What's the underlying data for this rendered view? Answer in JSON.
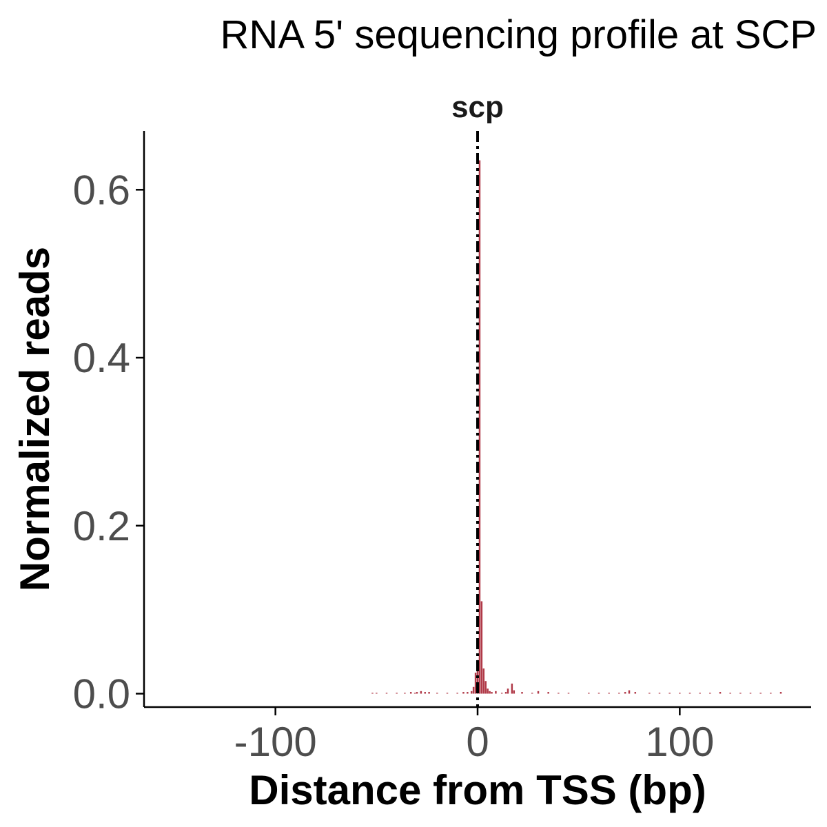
{
  "chart_data": {
    "type": "bar",
    "title": "RNA 5' sequencing profile at SCP",
    "xlabel": "Distance from TSS (bp)",
    "ylabel": "Normalized reads",
    "xlim": [
      -165,
      165
    ],
    "ylim": [
      -0.016,
      0.67
    ],
    "xticks": [
      -100,
      0,
      100
    ],
    "xtick_labels": [
      "-100",
      "0",
      "100"
    ],
    "yticks": [
      0.0,
      0.2,
      0.4,
      0.6
    ],
    "ytick_labels": [
      "0.0",
      "0.2",
      "0.4",
      "0.6"
    ],
    "grid": false,
    "legend": "none",
    "bar_color": "#b03a48",
    "vline": {
      "x": 0,
      "label": "scp",
      "style": "dashed",
      "color": "#000000"
    },
    "series": [
      {
        "x": [
          -52,
          -50,
          -45,
          -40,
          -36,
          -33,
          -31,
          -30,
          -28,
          -26,
          -24,
          -20,
          -15,
          -10,
          -7,
          -5,
          -3,
          -2,
          -1,
          0,
          1,
          2,
          3,
          4,
          5,
          6,
          7,
          9,
          12,
          14,
          15,
          17,
          18,
          22,
          27,
          30,
          35,
          40,
          45,
          55,
          60,
          65,
          70,
          73,
          75,
          78,
          85,
          90,
          95,
          100,
          105,
          110,
          115,
          120,
          125,
          130,
          135,
          140,
          145,
          150
        ],
        "values": [
          0.001,
          0.001,
          0.001,
          0.001,
          0.001,
          0.002,
          0.001,
          0.002,
          0.003,
          0.002,
          0.002,
          0.001,
          0.001,
          0.001,
          0.002,
          0.002,
          0.003,
          0.008,
          0.025,
          0.04,
          0.635,
          0.11,
          0.03,
          0.015,
          0.006,
          0.003,
          0.002,
          0.003,
          0.001,
          0.002,
          0.006,
          0.012,
          0.004,
          0.002,
          0.001,
          0.003,
          0.002,
          0.001,
          0.001,
          0.001,
          0.001,
          0.001,
          0.001,
          0.002,
          0.004,
          0.002,
          0.001,
          0.001,
          0.001,
          0.001,
          0.001,
          0.001,
          0.001,
          0.002,
          0.001,
          0.001,
          0.001,
          0.001,
          0.001,
          0.002
        ]
      }
    ]
  }
}
